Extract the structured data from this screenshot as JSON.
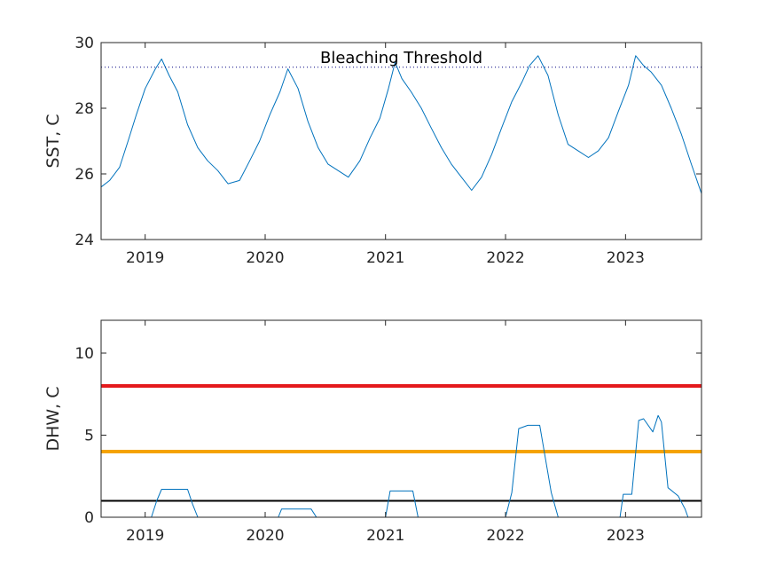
{
  "chart_data": [
    {
      "type": "line",
      "ylabel": "SST, C",
      "ylim": [
        24,
        30
      ],
      "yticks": [
        24,
        26,
        28,
        30
      ],
      "xlim": [
        "2018-08-20",
        "2023-08-20"
      ],
      "xticks": [
        "2019",
        "2020",
        "2021",
        "2022",
        "2023"
      ],
      "grid": false,
      "threshold": {
        "label": "Bleaching Threshold",
        "value": 29.25,
        "style": "dotted",
        "color": "#000080"
      },
      "series": [
        {
          "color": "#0072BD",
          "x": [
            "2018-08-20",
            "2018-09-15",
            "2018-10-15",
            "2018-11-10",
            "2018-12-05",
            "2019-01-01",
            "2019-02-01",
            "2019-02-20",
            "2019-03-15",
            "2019-04-10",
            "2019-05-10",
            "2019-06-10",
            "2019-07-10",
            "2019-08-10",
            "2019-09-10",
            "2019-10-15",
            "2019-11-15",
            "2019-12-15",
            "2020-01-15",
            "2020-02-15",
            "2020-03-10",
            "2020-04-10",
            "2020-05-10",
            "2020-06-10",
            "2020-07-10",
            "2020-08-10",
            "2020-09-10",
            "2020-10-15",
            "2020-11-15",
            "2020-12-15",
            "2021-01-10",
            "2021-01-30",
            "2021-02-20",
            "2021-03-20",
            "2021-04-20",
            "2021-05-20",
            "2021-06-20",
            "2021-07-20",
            "2021-08-20",
            "2021-09-20",
            "2021-10-20",
            "2021-11-20",
            "2021-12-20",
            "2022-01-20",
            "2022-02-20",
            "2022-03-15",
            "2022-04-10",
            "2022-05-10",
            "2022-06-10",
            "2022-07-10",
            "2022-08-10",
            "2022-09-10",
            "2022-10-10",
            "2022-11-10",
            "2022-12-10",
            "2023-01-10",
            "2023-02-01",
            "2023-02-25",
            "2023-03-20",
            "2023-04-20",
            "2023-05-20",
            "2023-06-20",
            "2023-07-20",
            "2023-08-20"
          ],
          "y": [
            25.6,
            25.8,
            26.2,
            27.0,
            27.8,
            28.6,
            29.2,
            29.5,
            29.0,
            28.5,
            27.5,
            26.8,
            26.4,
            26.1,
            25.7,
            25.8,
            26.4,
            27.0,
            27.8,
            28.5,
            29.2,
            28.6,
            27.6,
            26.8,
            26.3,
            26.1,
            25.9,
            26.4,
            27.1,
            27.7,
            28.6,
            29.4,
            28.9,
            28.5,
            28.0,
            27.4,
            26.8,
            26.3,
            25.9,
            25.5,
            25.9,
            26.6,
            27.4,
            28.2,
            28.8,
            29.3,
            29.6,
            29.0,
            27.8,
            26.9,
            26.7,
            26.5,
            26.7,
            27.1,
            27.9,
            28.7,
            29.6,
            29.3,
            29.1,
            28.7,
            28.0,
            27.2,
            26.3,
            25.4
          ]
        }
      ]
    },
    {
      "type": "line",
      "ylabel": "DHW, C",
      "ylim": [
        0,
        12
      ],
      "yticks": [
        0,
        5,
        10
      ],
      "xlim": [
        "2018-08-20",
        "2023-08-20"
      ],
      "xticks": [
        "2019",
        "2020",
        "2021",
        "2022",
        "2023"
      ],
      "grid": false,
      "reference_lines": [
        {
          "value": 8,
          "color": "#e41a1c"
        },
        {
          "value": 4,
          "color": "#f5a300"
        },
        {
          "value": 1,
          "color": "#000000"
        }
      ],
      "series": [
        {
          "color": "#0072BD",
          "x": [
            "2018-08-20",
            "2019-01-20",
            "2019-02-05",
            "2019-02-20",
            "2019-05-10",
            "2019-05-25",
            "2019-06-10",
            "2020-02-10",
            "2020-02-20",
            "2020-05-20",
            "2020-06-05",
            "2021-01-01",
            "2021-01-15",
            "2021-03-25",
            "2021-04-10",
            "2022-01-01",
            "2022-01-20",
            "2022-02-10",
            "2022-03-10",
            "2022-04-15",
            "2022-05-20",
            "2022-06-10",
            "2022-07-01",
            "2022-12-15",
            "2022-12-25",
            "2023-01-20",
            "2023-02-10",
            "2023-02-25",
            "2023-03-25",
            "2023-04-10",
            "2023-04-20",
            "2023-05-10",
            "2023-06-10",
            "2023-07-01",
            "2023-07-10",
            "2023-08-20"
          ],
          "y": [
            0,
            0,
            1.0,
            1.7,
            1.7,
            0.8,
            0,
            0,
            0.5,
            0.5,
            0,
            0,
            1.6,
            1.6,
            0,
            0,
            1.5,
            5.4,
            5.6,
            5.6,
            1.5,
            0,
            0,
            0,
            1.4,
            1.4,
            5.9,
            6.0,
            5.2,
            6.2,
            5.8,
            1.8,
            1.3,
            0.5,
            0,
            0
          ]
        }
      ]
    }
  ]
}
